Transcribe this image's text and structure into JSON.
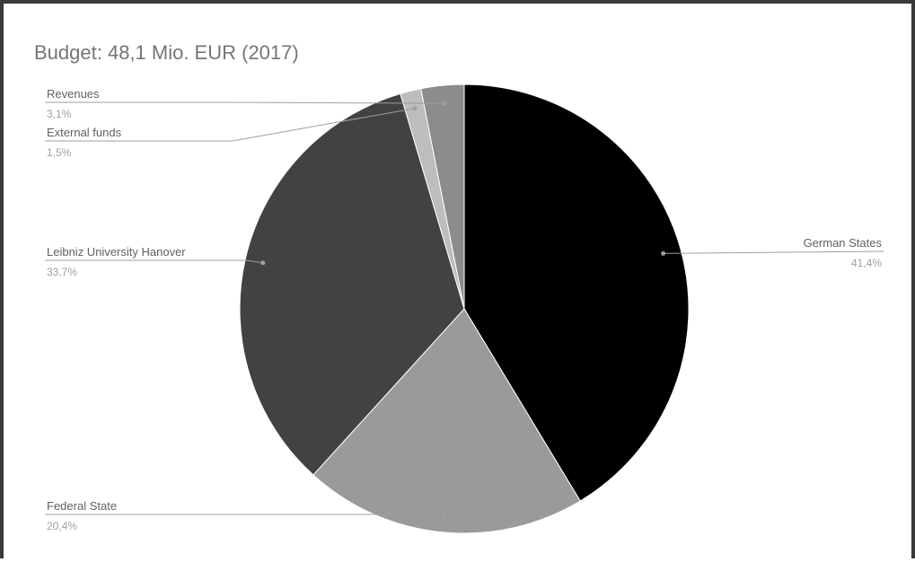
{
  "chart_data": {
    "type": "pie",
    "title": "Budget: 48,1 Mio. EUR (2017)",
    "slices": [
      {
        "label": "German States",
        "value": 41.4,
        "value_label": "41,4%",
        "color": "#000000"
      },
      {
        "label": "Federal State",
        "value": 20.4,
        "value_label": "20,4%",
        "color": "#9a9a9a"
      },
      {
        "label": "Leibniz University Hanover",
        "value": 33.7,
        "value_label": "33,7%",
        "color": "#424242"
      },
      {
        "label": "External funds",
        "value": 1.5,
        "value_label": "1,5%",
        "color": "#bdbdbd"
      },
      {
        "label": "Revenues",
        "value": 3.1,
        "value_label": "3,1%",
        "color": "#8c8c8c"
      }
    ],
    "legend": "none",
    "start_angle": "12 o'clock",
    "direction": "clockwise"
  }
}
